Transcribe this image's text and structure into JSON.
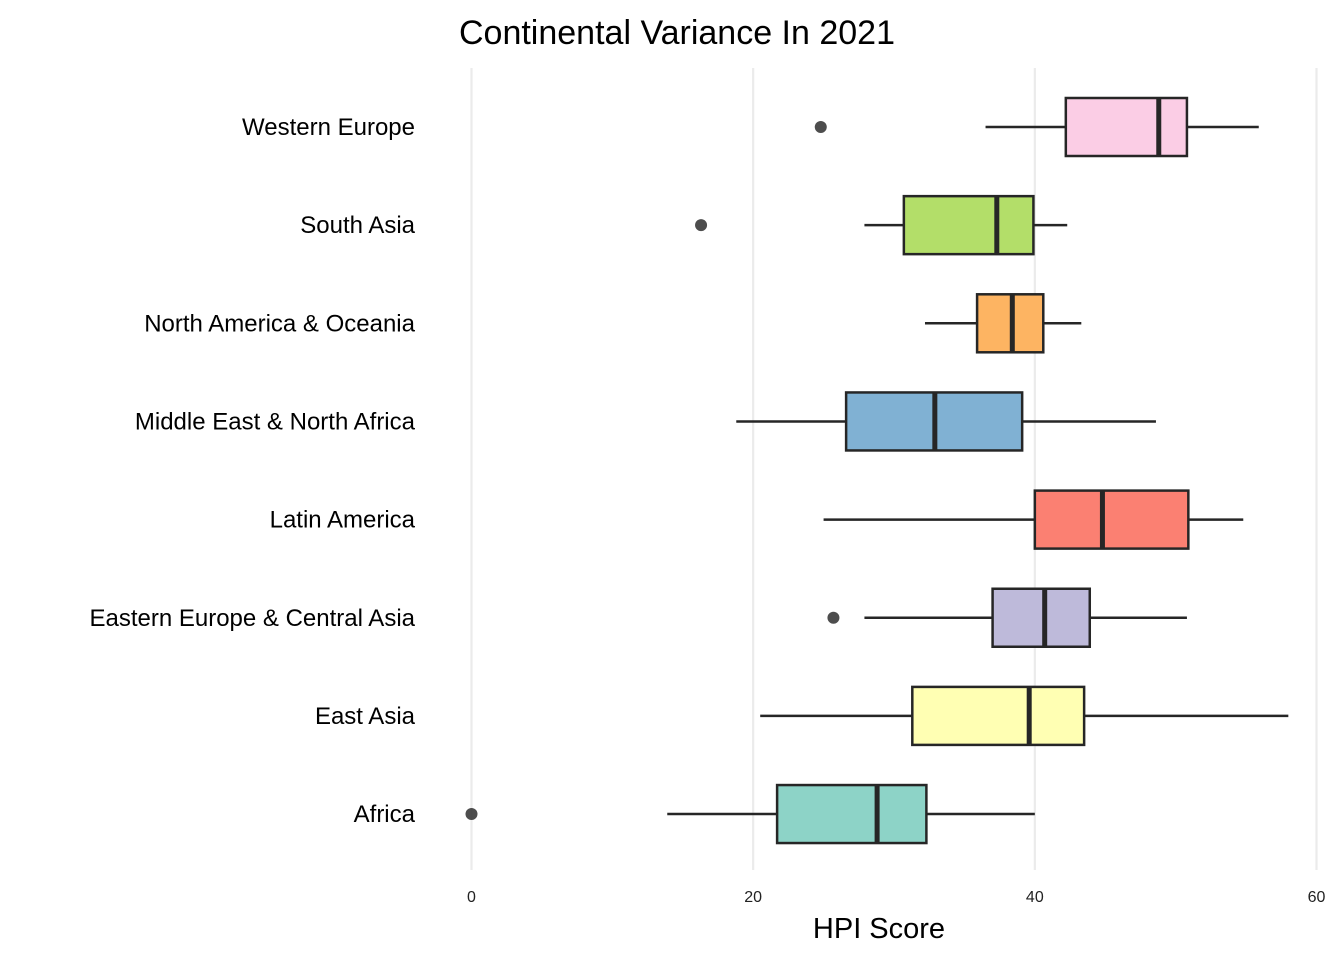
{
  "chart_data": {
    "type": "boxplot",
    "title": "Continental Variance In 2021",
    "xlabel": "HPI Score",
    "ylabel": "",
    "xlim": [
      0,
      60
    ],
    "xticks": [
      0,
      20,
      40,
      60
    ],
    "grid": "vertical major gridlines",
    "legend": "none",
    "categories": [
      "Western Europe",
      "South Asia",
      "North America & Oceania",
      "Middle East & North Africa",
      "Latin America",
      "Eastern Europe & Central Asia",
      "East Asia",
      "Africa"
    ],
    "series": [
      {
        "name": "Western Europe",
        "whisker_low": 36.5,
        "q1": 42.2,
        "median": 48.8,
        "q3": 50.8,
        "whisker_high": 55.9,
        "outliers": [
          24.8
        ],
        "color": "#FBCDE5"
      },
      {
        "name": "South Asia",
        "whisker_low": 27.9,
        "q1": 30.7,
        "median": 37.3,
        "q3": 39.9,
        "whisker_high": 42.3,
        "outliers": [
          16.3
        ],
        "color": "#B3DE69"
      },
      {
        "name": "North America & Oceania",
        "whisker_low": 32.2,
        "q1": 35.9,
        "median": 38.4,
        "q3": 40.6,
        "whisker_high": 43.3,
        "outliers": [],
        "color": "#FDB462"
      },
      {
        "name": "Middle East & North Africa",
        "whisker_low": 18.8,
        "q1": 26.6,
        "median": 32.9,
        "q3": 39.1,
        "whisker_high": 48.6,
        "outliers": [],
        "color": "#80B1D3"
      },
      {
        "name": "Latin America",
        "whisker_low": 25.0,
        "q1": 40.0,
        "median": 44.8,
        "q3": 50.9,
        "whisker_high": 54.8,
        "outliers": [],
        "color": "#FB8072"
      },
      {
        "name": "Eastern Europe & Central Asia",
        "whisker_low": 27.9,
        "q1": 37.0,
        "median": 40.7,
        "q3": 43.9,
        "whisker_high": 50.8,
        "outliers": [
          25.7
        ],
        "color": "#BEBADA"
      },
      {
        "name": "East Asia",
        "whisker_low": 20.5,
        "q1": 31.3,
        "median": 39.6,
        "q3": 43.5,
        "whisker_high": 58.0,
        "outliers": [],
        "color": "#FFFFB3"
      },
      {
        "name": "Africa",
        "whisker_low": 13.9,
        "q1": 21.7,
        "median": 28.8,
        "q3": 32.3,
        "whisker_high": 40.0,
        "outliers": [
          0.0
        ],
        "color": "#8DD3C7"
      }
    ],
    "styles": {
      "grid_color": "#EBEBEB",
      "outline_color": "#262626",
      "outlier_color": "#3A3A3A"
    }
  }
}
